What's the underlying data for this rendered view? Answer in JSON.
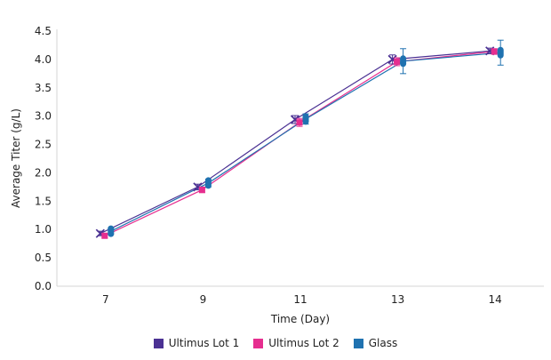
{
  "chart_data": {
    "type": "line",
    "title": "",
    "xlabel": "Time (Day)",
    "ylabel": "Average Titer (g/L)",
    "categories": [
      "7",
      "9",
      "11",
      "13",
      "14"
    ],
    "ylim": [
      0,
      4.5
    ],
    "ytick_step": 0.5,
    "ytick_labels": [
      "0.0",
      "0.5",
      "1.0",
      "1.5",
      "2.0",
      "2.5",
      "3.0",
      "3.5",
      "4.0",
      "4.5"
    ],
    "grid": false,
    "legend_position": "bottom",
    "series": [
      {
        "name": "Ultimus Lot 1",
        "color": "#4B3193",
        "marker": "x",
        "values": [
          0.93,
          1.75,
          2.94,
          4.0,
          4.15
        ],
        "errors": [
          0.04,
          0.05,
          0.07,
          0.08,
          0.05
        ]
      },
      {
        "name": "Ultimus Lot 2",
        "color": "#E62E8F",
        "marker": "square",
        "values": [
          0.89,
          1.7,
          2.89,
          3.96,
          4.14
        ],
        "errors": [
          0.04,
          0.05,
          0.07,
          0.07,
          0.05
        ]
      },
      {
        "name": "Glass",
        "color": "#1F72B0",
        "marker": "capsule",
        "values": [
          0.97,
          1.82,
          2.95,
          3.97,
          4.12
        ],
        "errors": [
          0.05,
          0.07,
          0.09,
          0.22,
          0.22
        ]
      }
    ],
    "colors": {
      "axis_line": "#D6D6D6",
      "tick_text": "#1F1F1F"
    }
  }
}
